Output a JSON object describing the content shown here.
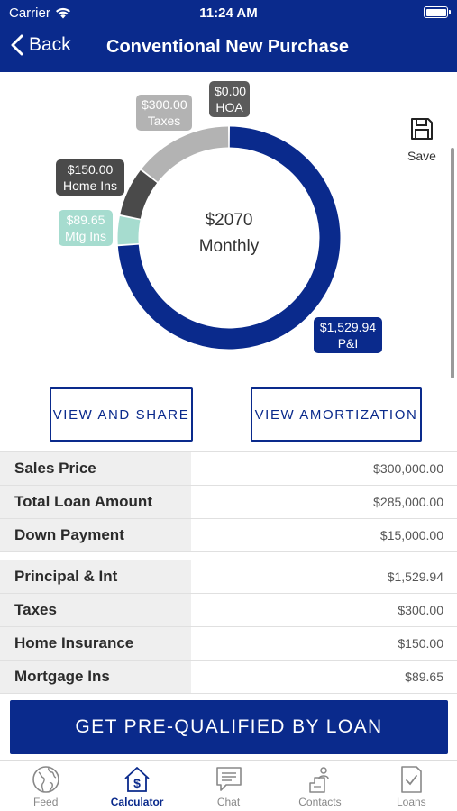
{
  "status_bar": {
    "carrier": "Carrier",
    "time": "11:24 AM"
  },
  "nav": {
    "back_label": "Back",
    "title": "Conventional New Purchase"
  },
  "chart_data": {
    "type": "pie",
    "center_amount": "$2070",
    "center_label": "Monthly",
    "slices": [
      {
        "label": "P&I",
        "value": 1529.94,
        "value_label": "$1,529.94",
        "color": "#0a2a8c"
      },
      {
        "label": "Mtg Ins",
        "value": 89.65,
        "value_label": "$89.65",
        "color": "#a6dccf"
      },
      {
        "label": "Home Ins",
        "value": 150.0,
        "value_label": "$150.00",
        "color": "#4a4a4a"
      },
      {
        "label": "Taxes",
        "value": 300.0,
        "value_label": "$300.00",
        "color": "#b3b3b3"
      },
      {
        "label": "HOA",
        "value": 0.0,
        "value_label": "$0.00",
        "color": "#5b5b5b"
      }
    ]
  },
  "save_label": "Save",
  "buttons": {
    "view_share": "VIEW AND SHARE",
    "view_amortization": "VIEW AMORTIZATION"
  },
  "loan_summary": [
    {
      "label": "Sales Price",
      "value": "$300,000.00"
    },
    {
      "label": "Total Loan Amount",
      "value": "$285,000.00"
    },
    {
      "label": "Down Payment",
      "value": "$15,000.00"
    }
  ],
  "payment_breakdown": [
    {
      "label": "Principal & Int",
      "value": "$1,529.94"
    },
    {
      "label": "Taxes",
      "value": "$300.00"
    },
    {
      "label": "Home Insurance",
      "value": "$150.00"
    },
    {
      "label": "Mortgage Ins",
      "value": "$89.65"
    }
  ],
  "cta_label": "GET PRE-QUALIFIED BY LOAN",
  "tabs": [
    {
      "label": "Feed",
      "icon": "globe-icon",
      "active": false
    },
    {
      "label": "Calculator",
      "icon": "calculator-house-icon",
      "active": true
    },
    {
      "label": "Chat",
      "icon": "chat-bubble-icon",
      "active": false
    },
    {
      "label": "Contacts",
      "icon": "contacts-icon",
      "active": false
    },
    {
      "label": "Loans",
      "icon": "loans-document-icon",
      "active": false
    }
  ]
}
